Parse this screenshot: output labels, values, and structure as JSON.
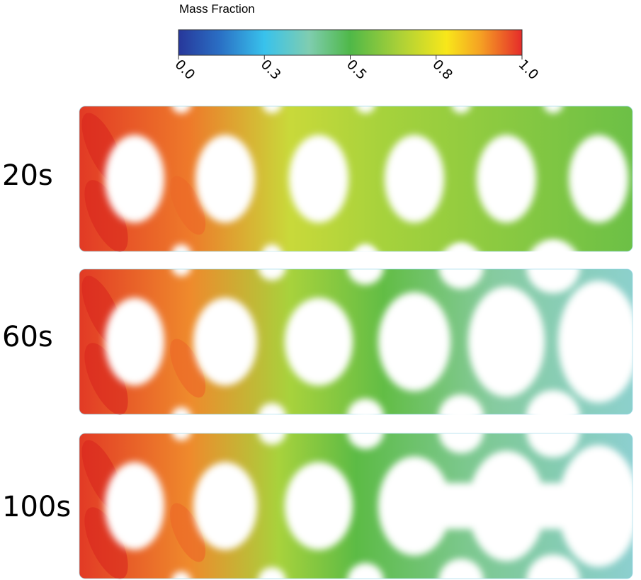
{
  "colorbar": {
    "title": "Mass Fraction",
    "range": [
      0,
      1
    ],
    "ticks": [
      {
        "value": 0,
        "label": "0.0"
      },
      {
        "value": 0.25,
        "label": "0.3"
      },
      {
        "value": 0.5,
        "label": "0.5"
      },
      {
        "value": 0.75,
        "label": "0.8"
      },
      {
        "value": 1,
        "label": "1.0"
      }
    ]
  },
  "panels": [
    {
      "label": "20s"
    },
    {
      "label": "60s"
    },
    {
      "label": "100s"
    }
  ]
}
